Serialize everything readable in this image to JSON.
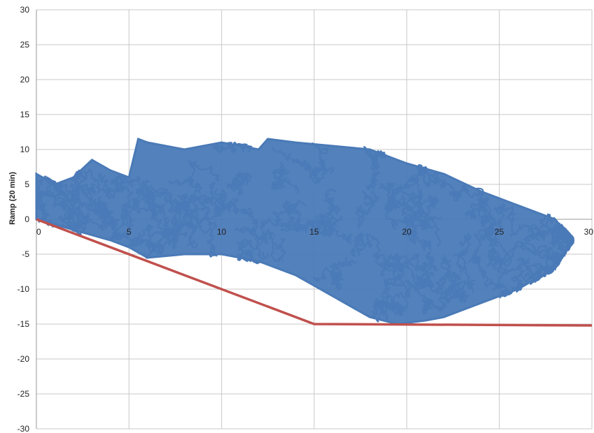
{
  "chart_data": {
    "type": "scatter",
    "title": "",
    "xlabel": "",
    "ylabel": "Ramp (20 min)",
    "xlim": [
      0,
      30
    ],
    "ylim": [
      -30,
      30
    ],
    "x_ticks": [
      0,
      5,
      10,
      15,
      20,
      25,
      30
    ],
    "y_ticks": [
      -30,
      -25,
      -20,
      -15,
      -10,
      -5,
      0,
      5,
      10,
      15,
      20,
      25,
      30
    ],
    "x_tick_labels": [
      "0",
      "5",
      "10",
      "15",
      "20",
      "25",
      "30"
    ],
    "y_tick_labels": [
      "-30",
      "-25",
      "-20",
      "-15",
      "-10",
      "-5",
      "0",
      "5",
      "10",
      "15",
      "20",
      "25",
      "30"
    ],
    "grid": true,
    "legend": "none",
    "series": [
      {
        "color": "#4a7ab7",
        "kind": "dense-trajectory-cloud",
        "upper_envelope": [
          [
            0,
            6.5
          ],
          [
            1,
            5
          ],
          [
            2,
            6
          ],
          [
            3,
            8.5
          ],
          [
            4,
            7
          ],
          [
            5,
            6
          ],
          [
            5.5,
            11.5
          ],
          [
            6,
            11
          ],
          [
            8,
            10
          ],
          [
            10,
            11
          ],
          [
            12,
            10
          ],
          [
            12.5,
            11.5
          ],
          [
            14,
            11
          ],
          [
            16,
            10.5
          ],
          [
            18,
            10
          ],
          [
            20,
            8
          ],
          [
            22,
            6.5
          ],
          [
            24,
            4
          ],
          [
            26,
            2
          ],
          [
            28,
            0
          ],
          [
            29,
            -3
          ]
        ],
        "lower_envelope": [
          [
            0,
            0
          ],
          [
            2,
            -1.5
          ],
          [
            4,
            -3
          ],
          [
            5,
            -4
          ],
          [
            6,
            -5.5
          ],
          [
            8,
            -5
          ],
          [
            10,
            -5
          ],
          [
            12,
            -6
          ],
          [
            14,
            -8
          ],
          [
            16,
            -11
          ],
          [
            18,
            -14
          ],
          [
            19.5,
            -15
          ],
          [
            21,
            -14.5
          ],
          [
            22,
            -14
          ],
          [
            23,
            -13
          ],
          [
            24,
            -12
          ],
          [
            26,
            -10
          ],
          [
            28,
            -7
          ],
          [
            29,
            -3
          ]
        ]
      },
      {
        "color": "#c0504d",
        "kind": "line",
        "x": [
          0,
          15,
          30
        ],
        "y": [
          0,
          -15,
          -15.2
        ]
      }
    ]
  }
}
